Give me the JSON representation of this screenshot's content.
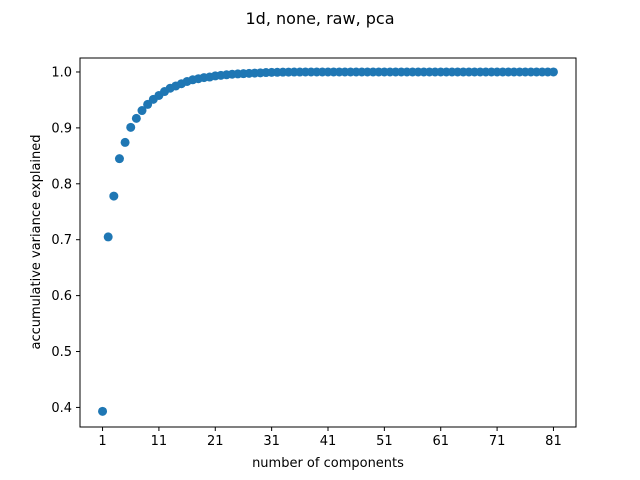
{
  "chart_data": {
    "type": "scatter",
    "title": "1d, none, raw, pca",
    "xlabel": "number of components",
    "ylabel": "accumulative variance explained",
    "xlim": [
      -3,
      85
    ],
    "ylim": [
      0.365,
      1.025
    ],
    "x_ticks": [
      1,
      11,
      21,
      31,
      41,
      51,
      61,
      71,
      81
    ],
    "y_ticks": [
      0.4,
      0.5,
      0.6,
      0.7,
      0.8,
      0.9,
      1.0
    ],
    "y_tick_labels": [
      "0.4",
      "0.5",
      "0.6",
      "0.7",
      "0.8",
      "0.9",
      "1.0"
    ],
    "grid": false,
    "legend": "none",
    "marker_color": "#1f77b4",
    "series": [
      {
        "x": [
          1,
          2,
          3,
          4,
          5,
          6,
          7,
          8,
          9,
          10,
          11,
          12,
          13,
          14,
          15,
          16,
          17,
          18,
          19,
          20,
          21,
          22,
          23,
          24,
          25,
          26,
          27,
          28,
          29,
          30,
          31,
          32,
          33,
          34,
          35,
          36,
          37,
          38,
          39,
          40,
          41,
          42,
          43,
          44,
          45,
          46,
          47,
          48,
          49,
          50,
          51,
          52,
          53,
          54,
          55,
          56,
          57,
          58,
          59,
          60,
          61,
          62,
          63,
          64,
          65,
          66,
          67,
          68,
          69,
          70,
          71,
          72,
          73,
          74,
          75,
          76,
          77,
          78,
          79,
          80,
          81
        ],
        "y": [
          0.393,
          0.705,
          0.778,
          0.845,
          0.874,
          0.901,
          0.917,
          0.931,
          0.942,
          0.951,
          0.958,
          0.965,
          0.971,
          0.975,
          0.979,
          0.983,
          0.986,
          0.988,
          0.99,
          0.991,
          0.993,
          0.994,
          0.995,
          0.996,
          0.9965,
          0.997,
          0.9975,
          0.998,
          0.9985,
          0.999,
          0.9993,
          0.9995,
          0.9997,
          0.9998,
          0.9999,
          0.9999,
          1.0,
          1.0,
          1.0,
          1.0,
          1.0,
          1.0,
          1.0,
          1.0,
          1.0,
          1.0,
          1.0,
          1.0,
          1.0,
          1.0,
          1.0,
          1.0,
          1.0,
          1.0,
          1.0,
          1.0,
          1.0,
          1.0,
          1.0,
          1.0,
          1.0,
          1.0,
          1.0,
          1.0,
          1.0,
          1.0,
          1.0,
          1.0,
          1.0,
          1.0,
          1.0,
          1.0,
          1.0,
          1.0,
          1.0,
          1.0,
          1.0,
          1.0,
          1.0,
          1.0,
          1.0
        ]
      }
    ]
  }
}
